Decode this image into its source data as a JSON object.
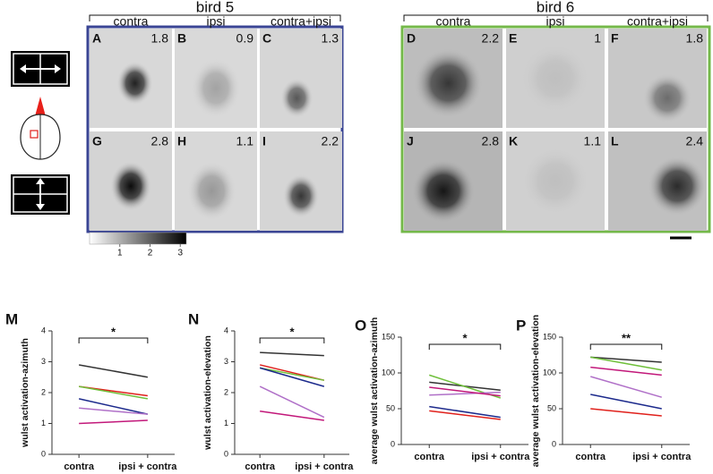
{
  "header": {
    "bird_5": "bird 5",
    "bird_6": "bird 6",
    "columns_5": [
      "contra",
      "ipsi",
      "contra+ipsi"
    ],
    "columns_6": [
      "contra",
      "ipsi",
      "contra+ipsi"
    ]
  },
  "panels": [
    {
      "letter": "A",
      "value": 1.8
    },
    {
      "letter": "B",
      "value": 0.9
    },
    {
      "letter": "C",
      "value": 1.3
    },
    {
      "letter": "G",
      "value": 2.8
    },
    {
      "letter": "H",
      "value": 1.1
    },
    {
      "letter": "I",
      "value": 2.2
    },
    {
      "letter": "D",
      "value": 2.2
    },
    {
      "letter": "E",
      "value": 1.0
    },
    {
      "letter": "F",
      "value": 1.8
    },
    {
      "letter": "J",
      "value": 2.8
    },
    {
      "letter": "K",
      "value": 1.1
    },
    {
      "letter": "L",
      "value": 2.4
    }
  ],
  "colorbar": {
    "lim": [
      0,
      3.2
    ],
    "ticks": [
      1,
      2,
      3
    ]
  },
  "chart_data": [
    {
      "type": "line",
      "panel_label": "M",
      "y_label": "wulst activation-azimuth",
      "annotation": "*",
      "categories": [
        "contra",
        "ipsi + contra"
      ],
      "ylim": [
        0,
        4
      ],
      "yticks": [
        0,
        1,
        2,
        3,
        4
      ],
      "series": [
        {
          "color": "#333333",
          "values": [
            2.9,
            2.5
          ]
        },
        {
          "color": "#e0201b",
          "values": [
            2.2,
            1.9
          ]
        },
        {
          "color": "#6fbf3a",
          "values": [
            2.2,
            1.8
          ]
        },
        {
          "color": "#1c2a8c",
          "values": [
            1.8,
            1.3
          ]
        },
        {
          "color": "#b070c8",
          "values": [
            1.5,
            1.3
          ]
        },
        {
          "color": "#c2187a",
          "values": [
            1.0,
            1.1
          ]
        }
      ]
    },
    {
      "type": "line",
      "panel_label": "N",
      "y_label": "wulst activation-elevation",
      "annotation": "*",
      "categories": [
        "contra",
        "ipsi + contra"
      ],
      "ylim": [
        0,
        4
      ],
      "yticks": [
        0,
        1,
        2,
        3,
        4
      ],
      "series": [
        {
          "color": "#333333",
          "values": [
            3.3,
            3.2
          ]
        },
        {
          "color": "#e0201b",
          "values": [
            2.9,
            2.4
          ]
        },
        {
          "color": "#6fbf3a",
          "values": [
            2.8,
            2.4
          ]
        },
        {
          "color": "#1c2a8c",
          "values": [
            2.8,
            2.2
          ]
        },
        {
          "color": "#b070c8",
          "values": [
            2.2,
            1.2
          ]
        },
        {
          "color": "#c2187a",
          "values": [
            1.4,
            1.1
          ]
        }
      ]
    },
    {
      "type": "line",
      "panel_label": "O",
      "y_label": "average wulst activation-azimuth",
      "annotation": "*",
      "categories": [
        "contra",
        "ipsi + contra"
      ],
      "ylim": [
        0,
        150
      ],
      "yticks": [
        0,
        50,
        100,
        150
      ],
      "series": [
        {
          "color": "#333333",
          "values": [
            87,
            76
          ]
        },
        {
          "color": "#6fbf3a",
          "values": [
            97,
            65
          ]
        },
        {
          "color": "#b070c8",
          "values": [
            69,
            73
          ]
        },
        {
          "color": "#c2187a",
          "values": [
            80,
            68
          ]
        },
        {
          "color": "#1c2a8c",
          "values": [
            53,
            38
          ]
        },
        {
          "color": "#e0201b",
          "values": [
            47,
            35
          ]
        }
      ]
    },
    {
      "type": "line",
      "panel_label": "P",
      "y_label": "average wulst activation-elevation",
      "annotation": "**",
      "categories": [
        "contra",
        "ipsi + contra"
      ],
      "ylim": [
        0,
        150
      ],
      "yticks": [
        0,
        50,
        100,
        150
      ],
      "series": [
        {
          "color": "#333333",
          "values": [
            122,
            115
          ]
        },
        {
          "color": "#6fbf3a",
          "values": [
            122,
            104
          ]
        },
        {
          "color": "#c2187a",
          "values": [
            108,
            97
          ]
        },
        {
          "color": "#b070c8",
          "values": [
            95,
            66
          ]
        },
        {
          "color": "#1c2a8c",
          "values": [
            70,
            50
          ]
        },
        {
          "color": "#e0201b",
          "values": [
            50,
            40
          ]
        }
      ]
    }
  ]
}
